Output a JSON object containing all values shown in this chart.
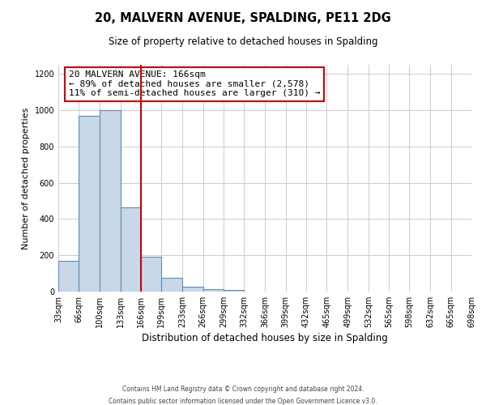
{
  "title1": "20, MALVERN AVENUE, SPALDING, PE11 2DG",
  "title2": "Size of property relative to detached houses in Spalding",
  "xlabel": "Distribution of detached houses by size in Spalding",
  "ylabel": "Number of detached properties",
  "footer1": "Contains HM Land Registry data © Crown copyright and database right 2024.",
  "footer2": "Contains public sector information licensed under the Open Government Licence v3.0.",
  "annotation_line1": "20 MALVERN AVENUE: 166sqm",
  "annotation_line2": "← 89% of detached houses are smaller (2,578)",
  "annotation_line3": "11% of semi-detached houses are larger (310) →",
  "property_size": 166,
  "bin_edges": [
    33,
    66,
    100,
    133,
    166,
    199,
    233,
    266,
    299,
    332,
    366,
    399,
    432,
    465,
    499,
    532,
    565,
    598,
    632,
    665,
    698
  ],
  "bin_counts": [
    170,
    970,
    1000,
    465,
    190,
    75,
    25,
    15,
    10,
    0,
    0,
    0,
    0,
    0,
    0,
    0,
    0,
    0,
    0,
    0
  ],
  "bar_color": "#c8d8e8",
  "bar_edge_color": "#5b8db8",
  "vline_color": "#cc0000",
  "vline_x": 166,
  "annotation_box_color": "#cc0000",
  "ylim": [
    0,
    1250
  ],
  "yticks": [
    0,
    200,
    400,
    600,
    800,
    1000,
    1200
  ],
  "bg_color": "#ffffff",
  "grid_color": "#cccccc"
}
